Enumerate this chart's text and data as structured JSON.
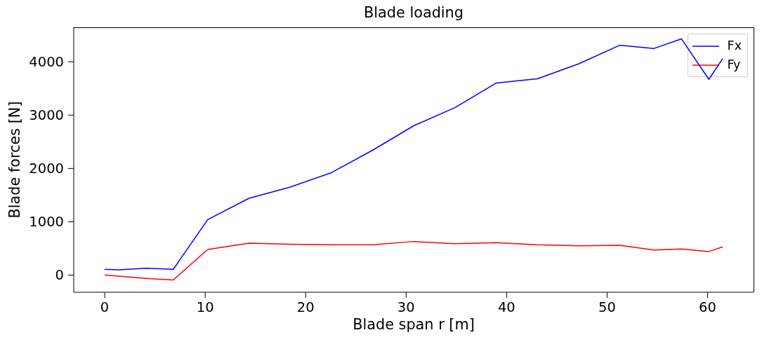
{
  "chart_data": {
    "type": "line",
    "title": "Blade loading",
    "xlabel": "Blade span r [m]",
    "ylabel": "Blade forces [N]",
    "x": [
      0,
      1.37,
      4.1,
      6.83,
      10.25,
      14.35,
      18.45,
      22.55,
      26.65,
      30.75,
      34.85,
      38.95,
      43.05,
      47.15,
      51.25,
      54.67,
      57.4,
      60.13,
      61.5
    ],
    "series": [
      {
        "name": "Fx",
        "color": "#0000ff",
        "values": [
          110,
          100,
          130,
          110,
          1040,
          1440,
          1650,
          1920,
          2340,
          2800,
          3140,
          3600,
          3680,
          3960,
          4310,
          4250,
          4430,
          3670,
          4060
        ]
      },
      {
        "name": "Fy",
        "color": "#ff0000",
        "values": [
          0,
          -20,
          -60,
          -90,
          480,
          600,
          580,
          570,
          570,
          630,
          590,
          610,
          570,
          550,
          560,
          470,
          490,
          440,
          530
        ]
      }
    ],
    "xlim": [
      -3.08,
      64.58
    ],
    "ylim": [
      -321,
      4646
    ],
    "xticks": [
      0,
      10,
      20,
      30,
      40,
      50,
      60
    ],
    "yticks": [
      0,
      1000,
      2000,
      3000,
      4000
    ],
    "legend": "top right",
    "marker": "none",
    "line_style": "solid"
  }
}
